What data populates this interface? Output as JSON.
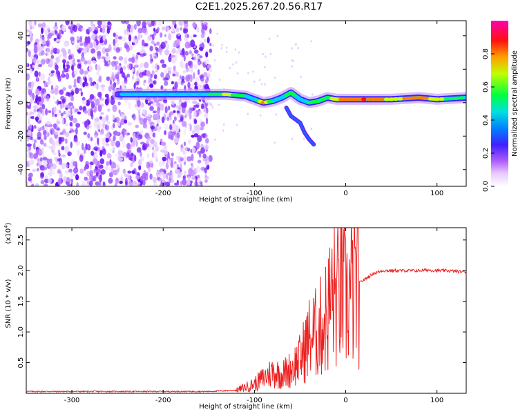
{
  "chart_data": [
    {
      "type": "heatmap",
      "title": "C2E1.2025.267.20.56.R17",
      "xlabel": "Height of straight line (km)",
      "ylabel": "Frequency (Hz)",
      "xlim": [
        -350,
        132
      ],
      "ylim": [
        -50,
        49
      ],
      "xticks": [
        "-300",
        "-200",
        "-100",
        "0",
        "100"
      ],
      "yticks": [
        "-40",
        "-20",
        "0",
        "20",
        "40"
      ],
      "colorbar": {
        "label": "Normalized spectral amplitude",
        "ticks": [
          "0.0",
          "0.2",
          "0.4",
          "0.6",
          "0.8"
        ],
        "range": [
          0,
          1
        ],
        "colors": [
          "#ffffff",
          "#e8c8ff",
          "#c070ff",
          "#7a00ff",
          "#2020ff",
          "#00c8ff",
          "#00ff60",
          "#ffff00",
          "#ff8000",
          "#ff0000",
          "#ff00a0"
        ]
      },
      "noise_region_x": [
        -350,
        -148
      ],
      "ridge": {
        "x": [
          -350,
          -250,
          -245,
          -220,
          -148,
          -130,
          -110,
          -100,
          -90,
          -80,
          -70,
          -60,
          -50,
          -40,
          -30,
          -20,
          -10,
          0,
          20,
          50,
          80,
          100,
          132
        ],
        "y": [
          5,
          5,
          5,
          5,
          5,
          5,
          4,
          2,
          0,
          1,
          3,
          6,
          2,
          0,
          1,
          3,
          2,
          2,
          2,
          2,
          3,
          2,
          3
        ],
        "amplitude": [
          0,
          0,
          0.5,
          0.5,
          0.6,
          0.8,
          0.6,
          0.5,
          0.9,
          0.6,
          0.5,
          0.7,
          0.5,
          0.6,
          0.6,
          0.7,
          0.8,
          0.9,
          1.0,
          0.8,
          0.9,
          0.8,
          0.6
        ]
      },
      "descending_branch": {
        "x": [
          -65,
          -60,
          -50,
          -45,
          -40,
          -35
        ],
        "y": [
          -3,
          -8,
          -12,
          -18,
          -22,
          -25
        ]
      }
    },
    {
      "type": "line",
      "xlabel": "Height of straight line (km)",
      "ylabel": "SNR (10 * v/v)",
      "y_multiplier": "(x10",
      "y_multiplier_exp": "4",
      "y_multiplier_close": ")",
      "xlim": [
        -350,
        132
      ],
      "ylim": [
        0,
        2.7
      ],
      "xticks": [
        "-300",
        "-200",
        "-100",
        "0",
        "100"
      ],
      "yticks": [
        "0.5",
        "1.0",
        "1.5",
        "2.0",
        "2.5"
      ],
      "series": [
        {
          "name": "SNR",
          "color": "#ee2020",
          "x": [
            -350,
            -300,
            -250,
            -200,
            -150,
            -120,
            -110,
            -100,
            -90,
            -80,
            -70,
            -60,
            -50,
            -40,
            -30,
            -20,
            -15,
            -10,
            -5,
            0,
            10,
            20,
            30,
            40,
            50,
            60,
            70,
            80,
            90,
            100,
            110,
            120,
            132
          ],
          "y": [
            0.03,
            0.03,
            0.03,
            0.03,
            0.03,
            0.05,
            0.1,
            0.15,
            0.25,
            0.35,
            0.3,
            0.4,
            0.55,
            0.9,
            1.0,
            1.3,
            1.6,
            1.55,
            1.7,
            1.5,
            1.75,
            1.85,
            1.95,
            2.0,
            2.0,
            2.0,
            2.0,
            2.0,
            2.01,
            2.0,
            2.0,
            1.99,
            1.98
          ]
        }
      ]
    }
  ]
}
